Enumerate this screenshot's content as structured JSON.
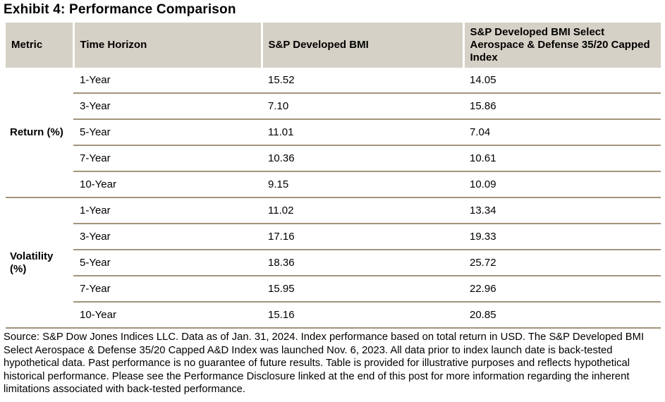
{
  "title": "Exhibit 4: Performance Comparison",
  "colors": {
    "header_bg": "#d6d1c6",
    "divider": "#a2947b",
    "text": "#000000"
  },
  "table": {
    "headers": {
      "metric": "Metric",
      "horizon": "Time Horizon",
      "bmi": "S&P Developed BMI",
      "select": "S&P Developed BMI Select Aerospace & Defense 35/20 Capped Index"
    },
    "sections": [
      {
        "metric": "Return (%)",
        "rows": [
          {
            "horizon": "1-Year",
            "bmi": "15.52",
            "select": "14.05"
          },
          {
            "horizon": "3-Year",
            "bmi": "7.10",
            "select": "15.86"
          },
          {
            "horizon": "5-Year",
            "bmi": "11.01",
            "select": "7.04"
          },
          {
            "horizon": "7-Year",
            "bmi": "10.36",
            "select": "10.61"
          },
          {
            "horizon": "10-Year",
            "bmi": "9.15",
            "select": "10.09"
          }
        ]
      },
      {
        "metric": "Volatility (%)",
        "rows": [
          {
            "horizon": "1-Year",
            "bmi": "11.02",
            "select": "13.34"
          },
          {
            "horizon": "3-Year",
            "bmi": "17.16",
            "select": "19.33"
          },
          {
            "horizon": "5-Year",
            "bmi": "18.36",
            "select": "25.72"
          },
          {
            "horizon": "7-Year",
            "bmi": "15.95",
            "select": "22.96"
          },
          {
            "horizon": "10-Year",
            "bmi": "15.16",
            "select": "20.85"
          }
        ]
      }
    ]
  },
  "footnote_lines": [
    "Source: S&P Dow Jones Indices LLC. Data as of Jan. 31, 2024. Index performance based on total return in USD. The S&P",
    "Developed BMI Select Aerospace & Defense 35/20 Capped A&D Index was launched Nov. 6, 2023. All data prior to index launch",
    "date is back-tested hypothetical data. Past performance is no guarantee of future results. Table is provided for illustrative purposes",
    "and reflects hypothetical historical performance. Please see the Performance Disclosure linked at the end of this post for more",
    "information regarding the inherent limitations associated with back-tested performance."
  ]
}
